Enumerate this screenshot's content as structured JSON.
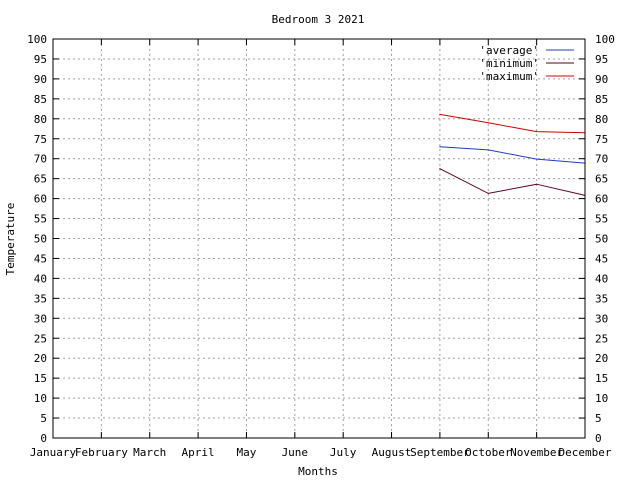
{
  "chart_data": {
    "type": "line",
    "title": "Bedroom 3 2021",
    "xlabel": "Months",
    "ylabel": "Temperature",
    "categories": [
      "January",
      "February",
      "March",
      "April",
      "May",
      "June",
      "July",
      "August",
      "September",
      "October",
      "November",
      "December"
    ],
    "ylim": [
      0,
      100
    ],
    "ystep": 5,
    "grid": true,
    "legend_position": "top-right",
    "series": [
      {
        "name": "'average'",
        "color": "#1f3fbf",
        "values": [
          null,
          null,
          null,
          null,
          null,
          null,
          null,
          null,
          73.0,
          72.2,
          69.9,
          68.9
        ]
      },
      {
        "name": "'minimum'",
        "color": "#5a0020",
        "values": [
          null,
          null,
          null,
          null,
          null,
          null,
          null,
          null,
          67.5,
          61.3,
          63.6,
          60.8
        ]
      },
      {
        "name": "'maximum'",
        "color": "#d40000",
        "values": [
          null,
          null,
          null,
          null,
          null,
          null,
          null,
          null,
          81.1,
          79.0,
          76.8,
          76.5
        ]
      }
    ]
  }
}
